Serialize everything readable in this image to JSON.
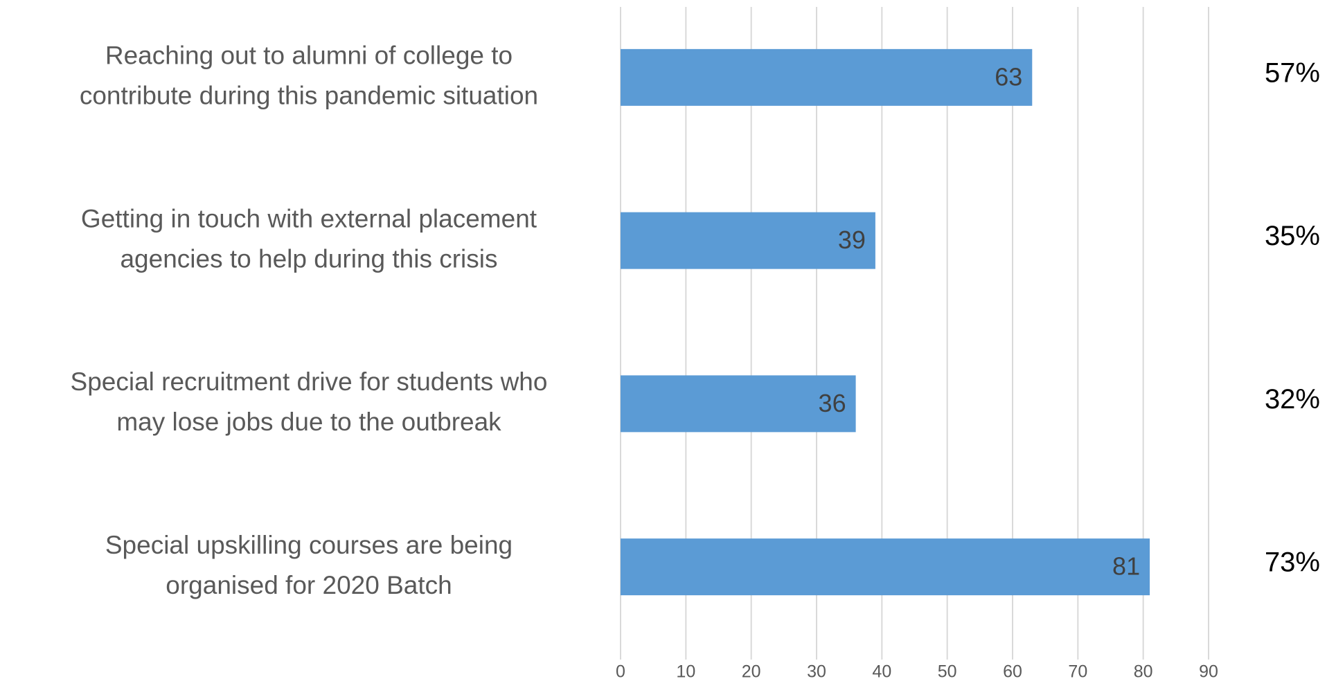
{
  "chart_data": {
    "type": "bar",
    "orientation": "horizontal",
    "categories": [
      [
        "Reaching out to alumni of college to",
        "contribute during this pandemic situation"
      ],
      [
        "Getting in touch with external placement",
        "agencies to help during this crisis"
      ],
      [
        "Special recruitment drive for students who",
        "may lose jobs due to the outbreak"
      ],
      [
        "Special upskilling courses are being",
        "organised for 2020 Batch"
      ]
    ],
    "values": [
      63,
      39,
      36,
      81
    ],
    "annotations": [
      "57%",
      "35%",
      "32%",
      "73%"
    ],
    "color": "#5b9bd5",
    "xlim": [
      0,
      90
    ],
    "xticks": [
      0,
      10,
      20,
      30,
      40,
      50,
      60,
      70,
      80,
      90
    ],
    "grid": true
  }
}
